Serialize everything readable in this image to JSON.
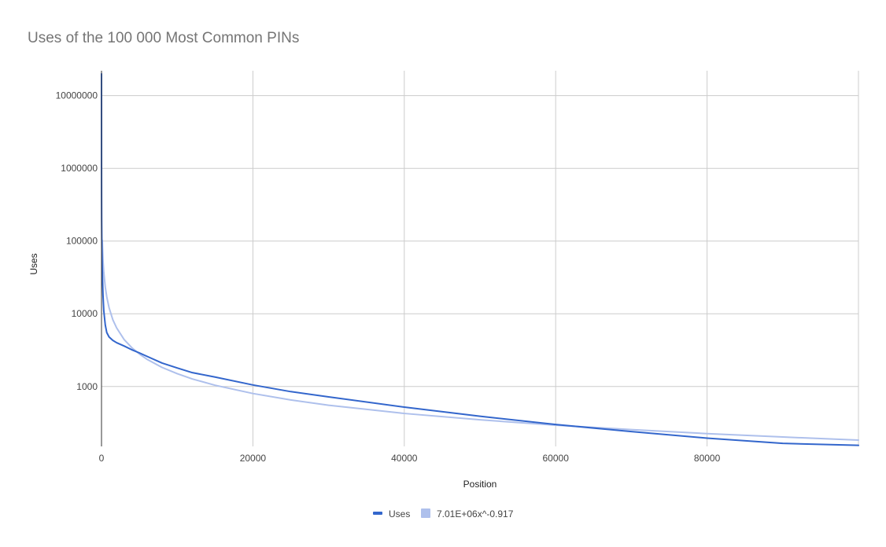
{
  "chart_data": {
    "type": "line",
    "title": "Uses of the 100 000 Most Common PINs",
    "xlabel": "Position",
    "ylabel": "Uses",
    "xlim": [
      0,
      100000
    ],
    "ylim": [
      150,
      22000000
    ],
    "y_scale": "log",
    "grid": true,
    "legend_position": "bottom",
    "x_ticks": [
      {
        "value": 0,
        "label": "0"
      },
      {
        "value": 20000,
        "label": "20000"
      },
      {
        "value": 40000,
        "label": "40000"
      },
      {
        "value": 60000,
        "label": "60000"
      },
      {
        "value": 80000,
        "label": "80000"
      }
    ],
    "y_ticks": [
      {
        "value": 1000,
        "label": "1000"
      },
      {
        "value": 10000,
        "label": "10000"
      },
      {
        "value": 100000,
        "label": "100000"
      },
      {
        "value": 1000000,
        "label": "1000000"
      },
      {
        "value": 10000000,
        "label": "10000000"
      }
    ],
    "series": [
      {
        "name": "Uses",
        "color": "#3366cc",
        "x": [
          1,
          2,
          5,
          10,
          20,
          50,
          100,
          200,
          300,
          500,
          700,
          1000,
          1500,
          2000,
          3000,
          4000,
          5000,
          6000,
          8000,
          10000,
          12000,
          15000,
          20000,
          25000,
          30000,
          40000,
          50000,
          60000,
          70000,
          80000,
          90000,
          100000
        ],
        "y": [
          20000000,
          5000000,
          1000000,
          400000,
          200000,
          80000,
          40000,
          18000,
          11000,
          7000,
          5500,
          4800,
          4300,
          4000,
          3600,
          3200,
          2900,
          2600,
          2100,
          1800,
          1550,
          1350,
          1050,
          850,
          720,
          520,
          390,
          300,
          240,
          195,
          165,
          155
        ]
      },
      {
        "name": "7.01E+06x^-0.917",
        "color": "#aec0ec",
        "formula": {
          "a": 7010000,
          "b": -0.917
        },
        "x": [
          100,
          200,
          300,
          500,
          700,
          1000,
          1500,
          2000,
          3000,
          4000,
          5000,
          6000,
          8000,
          10000,
          12000,
          15000,
          20000,
          25000,
          30000,
          40000,
          50000,
          60000,
          70000,
          80000,
          90000,
          100000
        ],
        "y": [
          102600,
          54300,
          37500,
          23300,
          17000,
          12100,
          8250,
          6390,
          4410,
          3420,
          2800,
          2370,
          1830,
          1500,
          1270,
          1040,
          801,
          653,
          552,
          426,
          348,
          294,
          255,
          225,
          202,
          183
        ]
      }
    ]
  }
}
